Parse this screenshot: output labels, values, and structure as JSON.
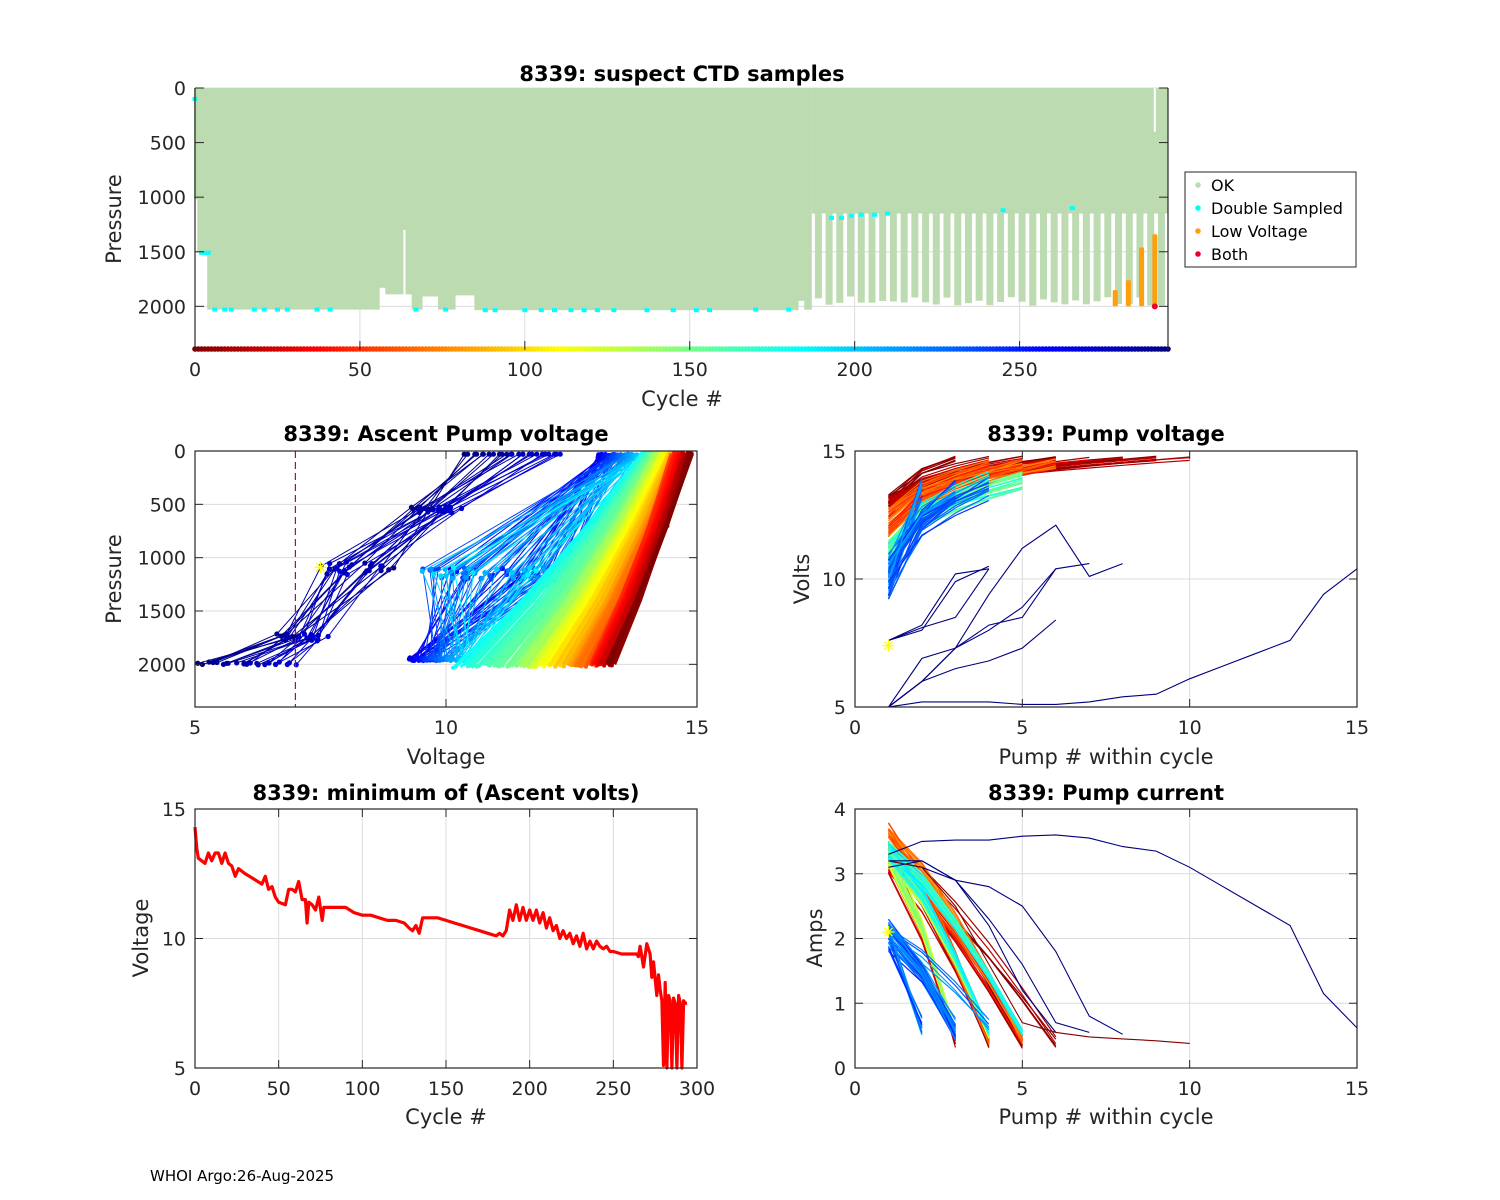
{
  "footer": "WHOI Argo:26-Aug-2025",
  "colors": {
    "ok": "#bcdbb0",
    "double_sampled": "#00ffff",
    "low_voltage": "#ff9f10",
    "both": "#ee0033",
    "min_volts_line": "#ff0000",
    "threshold_line": "#cc0033",
    "marker": "#ffff00"
  },
  "chart_data": [
    {
      "id": "suspect",
      "type": "bar",
      "title": "8339: suspect CTD samples",
      "xlabel": "Cycle #",
      "ylabel": "Pressure",
      "xlim": [
        0,
        295
      ],
      "ylim": [
        0,
        2400
      ],
      "y_reversed": true,
      "xticks": [
        "0",
        "50",
        "100",
        "150",
        "200",
        "250"
      ],
      "yticks": [
        "0",
        "500",
        "1000",
        "1500",
        "2000"
      ],
      "grid": true,
      "legend": {
        "placement": "outside-right",
        "entries": [
          "OK",
          "Double Sampled",
          "Low Voltage",
          "Both"
        ]
      },
      "profile_depth_segments": [
        {
          "from": 0,
          "to": 1,
          "depth": 1020
        },
        {
          "from": 1,
          "to": 4,
          "depth": 1510
        },
        {
          "from": 4,
          "to": 56,
          "depth": 2030
        },
        {
          "from": 56,
          "to": 58,
          "depth": 1830
        },
        {
          "from": 58,
          "to": 66,
          "depth": 1890
        },
        {
          "from": 66,
          "to": 69,
          "depth": 2030
        },
        {
          "from": 69,
          "to": 74,
          "depth": 1910
        },
        {
          "from": 74,
          "to": 79,
          "depth": 2030
        },
        {
          "from": 79,
          "to": 85,
          "depth": 1900
        },
        {
          "from": 85,
          "to": 183,
          "depth": 2035
        },
        {
          "from": 183,
          "to": 185,
          "depth": 1950
        },
        {
          "from": 185,
          "to": 187,
          "depth": 2030
        }
      ],
      "sparse_cycles_start": 187,
      "sparse_top_depth": 1150,
      "sparse_bar_depth": 2000,
      "sparse_bar_count": 33,
      "low_voltage_bars": [
        {
          "cycle": 279,
          "top": 1850,
          "bottom": 2000
        },
        {
          "cycle": 283,
          "top": 1760,
          "bottom": 2000
        },
        {
          "cycle": 287,
          "top": 1460,
          "bottom": 2000
        },
        {
          "cycle": 291,
          "top": 1340,
          "bottom": 2000
        }
      ],
      "both_points": [
        {
          "cycle": 291,
          "pressure": 2000
        }
      ],
      "double_sampled_points": [
        [
          0,
          100
        ],
        [
          2,
          1510
        ],
        [
          3,
          1510
        ],
        [
          4,
          1510
        ],
        [
          6,
          2030
        ],
        [
          9,
          2030
        ],
        [
          11,
          2030
        ],
        [
          18,
          2030
        ],
        [
          21,
          2030
        ],
        [
          25,
          2030
        ],
        [
          28,
          2030
        ],
        [
          37,
          2030
        ],
        [
          41,
          2030
        ],
        [
          67,
          2030
        ],
        [
          76,
          2030
        ],
        [
          88,
          2035
        ],
        [
          91,
          2035
        ],
        [
          100,
          2035
        ],
        [
          105,
          2035
        ],
        [
          109,
          2035
        ],
        [
          114,
          2035
        ],
        [
          118,
          2035
        ],
        [
          122,
          2035
        ],
        [
          127,
          2035
        ],
        [
          137,
          2035
        ],
        [
          145,
          2035
        ],
        [
          152,
          2035
        ],
        [
          156,
          2035
        ],
        [
          170,
          2030
        ],
        [
          180,
          2030
        ],
        [
          193,
          1190
        ],
        [
          196,
          1190
        ],
        [
          199,
          1170
        ],
        [
          202,
          1160
        ],
        [
          206,
          1160
        ],
        [
          210,
          1150
        ],
        [
          245,
          1120
        ],
        [
          266,
          1100
        ]
      ],
      "color_bar": {
        "label": "Cycle #",
        "range": [
          0,
          295
        ],
        "colormap": "jet-reversed"
      },
      "notch": {
        "cycle": 291,
        "top": 0,
        "bottom": 400
      }
    },
    {
      "id": "ascent",
      "type": "scatter",
      "title": "8339: Ascent Pump voltage",
      "xlabel": "Voltage",
      "ylabel": "Pressure",
      "xlim": [
        5,
        15
      ],
      "ylim": [
        0,
        2400
      ],
      "y_reversed": true,
      "xticks": [
        "5",
        "10",
        "15"
      ],
      "yticks": [
        "0",
        "500",
        "1000",
        "1500",
        "2000"
      ],
      "grid": true,
      "threshold_voltage": 7.0,
      "marker_point": {
        "voltage": 7.5,
        "pressure": 1090
      },
      "profile_groups": [
        {
          "cycle_range": [
            0,
            60
          ],
          "top_v": [
            14.5,
            14.9
          ],
          "bottom_v": [
            12.9,
            13.3
          ],
          "bottom_p": 2000
        },
        {
          "cycle_range": [
            60,
            140
          ],
          "top_v": [
            14.2,
            14.7
          ],
          "bottom_v": [
            11.5,
            12.9
          ],
          "bottom_p": 2010
        },
        {
          "cycle_range": [
            140,
            185
          ],
          "top_v": [
            13.9,
            14.2
          ],
          "bottom_v": [
            10.1,
            11.7
          ],
          "bottom_p": 2020
        },
        {
          "cycle_range": [
            185,
            270
          ],
          "top_v": [
            13.0,
            14.0
          ],
          "bottom_v": [
            9.3,
            10.5
          ],
          "bottom_p": 1950,
          "mid_v": [
            9.5,
            12.4
          ],
          "mid_p": 1150
        },
        {
          "cycle_range": [
            270,
            295
          ],
          "top_v": [
            10.3,
            12.3
          ],
          "bottom_v": [
            5.0,
            7.0
          ],
          "bottom_p": 1990,
          "mid_v": [
            7.5,
            9.0
          ],
          "mid_p": 1100
        }
      ]
    },
    {
      "id": "pumpv",
      "type": "line",
      "title": "8339: Pump voltage",
      "xlabel": "Pump # within cycle",
      "ylabel": "Volts",
      "xlim": [
        0,
        15
      ],
      "ylim": [
        5,
        15
      ],
      "xticks": [
        "0",
        "5",
        "10",
        "15"
      ],
      "yticks": [
        "5",
        "10",
        "15"
      ],
      "grid": true,
      "marker_point": {
        "pump": 1,
        "volts": 7.4
      },
      "highlighted_series": [
        {
          "x": [
            1,
            2,
            3,
            4
          ],
          "y": [
            7.6,
            8.1,
            8.5,
            10.4
          ]
        },
        {
          "x": [
            1,
            2,
            3,
            4
          ],
          "y": [
            7.6,
            8.0,
            9.9,
            10.5
          ]
        },
        {
          "x": [
            1,
            2,
            3,
            4
          ],
          "y": [
            7.6,
            8.2,
            10.2,
            10.4
          ]
        },
        {
          "x": [
            1,
            2,
            3,
            4,
            5,
            6
          ],
          "y": [
            5.0,
            6.0,
            6.5,
            6.8,
            7.3,
            8.4
          ]
        },
        {
          "x": [
            1,
            2,
            3,
            4,
            5,
            6
          ],
          "y": [
            5.0,
            6.9,
            7.3,
            8.0,
            8.9,
            10.4
          ]
        },
        {
          "x": [
            1,
            2,
            3,
            4,
            5,
            6,
            7
          ],
          "y": [
            5.0,
            6.0,
            7.3,
            8.2,
            8.5,
            10.4,
            10.6
          ]
        },
        {
          "x": [
            1,
            2,
            3,
            4,
            5,
            6,
            7,
            8
          ],
          "y": [
            5.0,
            6.0,
            7.3,
            9.4,
            11.2,
            12.1,
            10.1,
            10.6
          ]
        },
        {
          "x": [
            1,
            2,
            3,
            4,
            5,
            6,
            7,
            8,
            9,
            10,
            11,
            12,
            13,
            14,
            15
          ],
          "y": [
            5.0,
            5.2,
            5.2,
            5.2,
            5.1,
            5.1,
            5.2,
            5.4,
            5.5,
            6.1,
            6.6,
            7.1,
            7.6,
            9.4,
            10.4
          ]
        }
      ],
      "band_groups": [
        {
          "color_cycle": 10,
          "start_v": [
            12.8,
            13.3
          ],
          "end_v": [
            14.6,
            14.8
          ],
          "n_pumps": [
            3,
            10
          ]
        },
        {
          "color_cycle": 60,
          "start_v": [
            11.2,
            12.8
          ],
          "end_v": [
            14.3,
            14.7
          ],
          "n_pumps": [
            4,
            6
          ]
        },
        {
          "color_cycle": 160,
          "start_v": [
            10.5,
            11.5
          ],
          "end_v": [
            13.5,
            14.2
          ],
          "n_pumps": [
            4,
            5
          ]
        },
        {
          "color_cycle": 230,
          "start_v": [
            9.2,
            11.0
          ],
          "end_v": [
            13.0,
            14.0
          ],
          "n_pumps": [
            2,
            4
          ]
        }
      ]
    },
    {
      "id": "minv",
      "type": "line",
      "title": "8339: minimum of (Ascent volts)",
      "xlabel": "Cycle #",
      "ylabel": "Voltage",
      "xlim": [
        0,
        300
      ],
      "ylim": [
        5,
        15
      ],
      "xticks": [
        "0",
        "50",
        "100",
        "150",
        "200",
        "250",
        "300"
      ],
      "yticks": [
        "5",
        "10",
        "15"
      ],
      "grid": true,
      "x": [
        0,
        1,
        2,
        4,
        6,
        8,
        10,
        12,
        14,
        16,
        18,
        20,
        22,
        24,
        26,
        30,
        35,
        40,
        42,
        44,
        46,
        48,
        50,
        54,
        56,
        58,
        60,
        62,
        64,
        66,
        67,
        68,
        70,
        72,
        74,
        76,
        77,
        78,
        80,
        85,
        90,
        95,
        100,
        105,
        110,
        115,
        120,
        125,
        128,
        130,
        132,
        134,
        136,
        140,
        145,
        150,
        155,
        160,
        165,
        170,
        175,
        180,
        182,
        184,
        186,
        188,
        190,
        192,
        194,
        196,
        198,
        200,
        202,
        204,
        206,
        208,
        210,
        212,
        214,
        216,
        218,
        220,
        222,
        224,
        226,
        228,
        230,
        232,
        234,
        236,
        238,
        240,
        242,
        244,
        246,
        248,
        250,
        255,
        260,
        264,
        265,
        266,
        268,
        270,
        272,
        273,
        274,
        276,
        277,
        278,
        279,
        280,
        281,
        282,
        283,
        284,
        285,
        286,
        287,
        288,
        289,
        290,
        291,
        292,
        293,
        294
      ],
      "y": [
        14.3,
        13.5,
        13.1,
        13.0,
        12.9,
        13.3,
        13.0,
        13.3,
        13.3,
        12.9,
        13.3,
        12.9,
        12.8,
        12.4,
        12.7,
        12.5,
        12.3,
        12.1,
        12.4,
        11.9,
        12.0,
        11.6,
        11.4,
        11.3,
        11.9,
        11.9,
        11.8,
        12.2,
        11.5,
        11.5,
        10.6,
        11.4,
        11.3,
        11.1,
        11.6,
        10.7,
        11.2,
        11.2,
        11.2,
        11.2,
        11.2,
        11.0,
        10.9,
        10.9,
        10.8,
        10.7,
        10.7,
        10.6,
        10.4,
        10.3,
        10.5,
        10.2,
        10.8,
        10.8,
        10.8,
        10.7,
        10.6,
        10.5,
        10.4,
        10.3,
        10.2,
        10.1,
        10.2,
        10.1,
        10.3,
        11.1,
        10.7,
        11.3,
        10.7,
        11.2,
        10.7,
        11.1,
        10.7,
        11.1,
        10.6,
        11.0,
        10.4,
        10.8,
        10.3,
        10.5,
        10.0,
        10.3,
        10.0,
        10.2,
        9.8,
        10.1,
        9.7,
        10.2,
        9.6,
        9.9,
        9.6,
        9.9,
        9.7,
        9.6,
        9.7,
        9.5,
        9.5,
        9.4,
        9.4,
        9.4,
        9.3,
        9.7,
        8.9,
        9.8,
        9.4,
        8.5,
        9.1,
        7.8,
        8.6,
        8.0,
        7.6,
        5.1,
        8.3,
        5.0,
        7.8,
        7.6,
        5.0,
        7.7,
        7.5,
        5.0,
        7.8,
        7.5,
        5.0,
        7.6,
        7.5,
        7.5
      ]
    },
    {
      "id": "pumpc",
      "type": "line",
      "title": "8339: Pump current",
      "xlabel": "Pump # within cycle",
      "ylabel": "Amps",
      "xlim": [
        0,
        15
      ],
      "ylim": [
        0,
        4
      ],
      "xticks": [
        "0",
        "5",
        "10",
        "15"
      ],
      "yticks": [
        "0",
        "1",
        "2",
        "3",
        "4"
      ],
      "grid": true,
      "marker_point": {
        "pump": 1,
        "amps": 2.1
      },
      "highlighted_series": [
        {
          "x": [
            1,
            2,
            3,
            4,
            5,
            6,
            7,
            8,
            9,
            10,
            11,
            12,
            13,
            14,
            15
          ],
          "y": [
            3.3,
            3.5,
            3.52,
            3.52,
            3.58,
            3.6,
            3.55,
            3.42,
            3.35,
            3.1,
            2.8,
            2.5,
            2.2,
            1.15,
            0.62
          ]
        },
        {
          "x": [
            1,
            2,
            3,
            4,
            5,
            6,
            7,
            8
          ],
          "y": [
            3.2,
            3.2,
            2.9,
            2.8,
            2.5,
            1.8,
            0.8,
            0.52
          ]
        },
        {
          "x": [
            1,
            2,
            3,
            4,
            5,
            6,
            7
          ],
          "y": [
            3.2,
            3.1,
            2.9,
            2.3,
            1.6,
            0.7,
            0.55
          ]
        },
        {
          "x": [
            1,
            2,
            3,
            4,
            5,
            6
          ],
          "y": [
            3.1,
            3.2,
            2.9,
            2.2,
            1.2,
            0.55
          ]
        },
        {
          "x": [
            1,
            2,
            3,
            4,
            5,
            6,
            7,
            8,
            9,
            10
          ],
          "y": [
            3.2,
            3.1,
            2.5,
            1.6,
            0.7,
            0.55,
            0.48,
            0.45,
            0.42,
            0.38
          ]
        }
      ],
      "band_groups": [
        {
          "color_cycle": 10,
          "start_a": [
            3.0,
            3.5
          ],
          "end_a": [
            0.3,
            0.5
          ],
          "n_pumps": [
            3,
            6
          ]
        },
        {
          "color_cycle": 60,
          "start_a": [
            3.0,
            3.8
          ],
          "end_a": [
            0.35,
            0.5
          ],
          "n_pumps": [
            4,
            5
          ]
        },
        {
          "color_cycle": 130,
          "start_a": [
            3.1,
            3.5
          ],
          "end_a": [
            0.45,
            0.6
          ],
          "n_pumps": [
            3,
            4
          ]
        },
        {
          "color_cycle": 175,
          "start_a": [
            3.2,
            3.5
          ],
          "end_a": [
            0.5,
            0.6
          ],
          "n_pumps": [
            4,
            5
          ]
        },
        {
          "color_cycle": 230,
          "start_a": [
            1.8,
            2.3
          ],
          "end_a": [
            0.4,
            0.8
          ],
          "n_pumps": [
            2,
            4
          ]
        }
      ]
    }
  ]
}
